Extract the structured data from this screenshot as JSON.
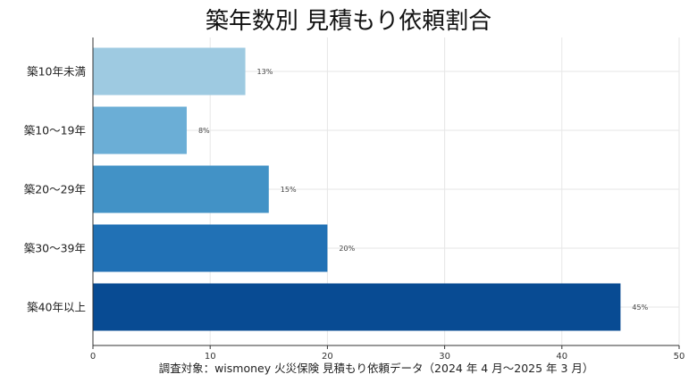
{
  "chart_data": {
    "type": "bar",
    "orientation": "horizontal",
    "title": "築年数別 見積もり依頼割合",
    "xlabel": "調査対象：wismoney 火災保険 見積もり依頼データ（2024 年 4 月〜2025 年 3 月）",
    "ylabel": "",
    "categories": [
      "築10年未満",
      "築10〜19年",
      "築20〜29年",
      "築30〜39年",
      "築40年以上"
    ],
    "values": [
      13,
      8,
      15,
      20,
      45
    ],
    "value_labels": [
      "13%",
      "8%",
      "15%",
      "20%",
      "45%"
    ],
    "xlim": [
      0,
      50
    ],
    "xticks": [
      "0",
      "10",
      "20",
      "30",
      "40",
      "50"
    ],
    "grid": true,
    "legend": "none",
    "bar_colors": [
      "#9ecae1",
      "#6baed6",
      "#4292c6",
      "#2171b5",
      "#084b93"
    ]
  }
}
